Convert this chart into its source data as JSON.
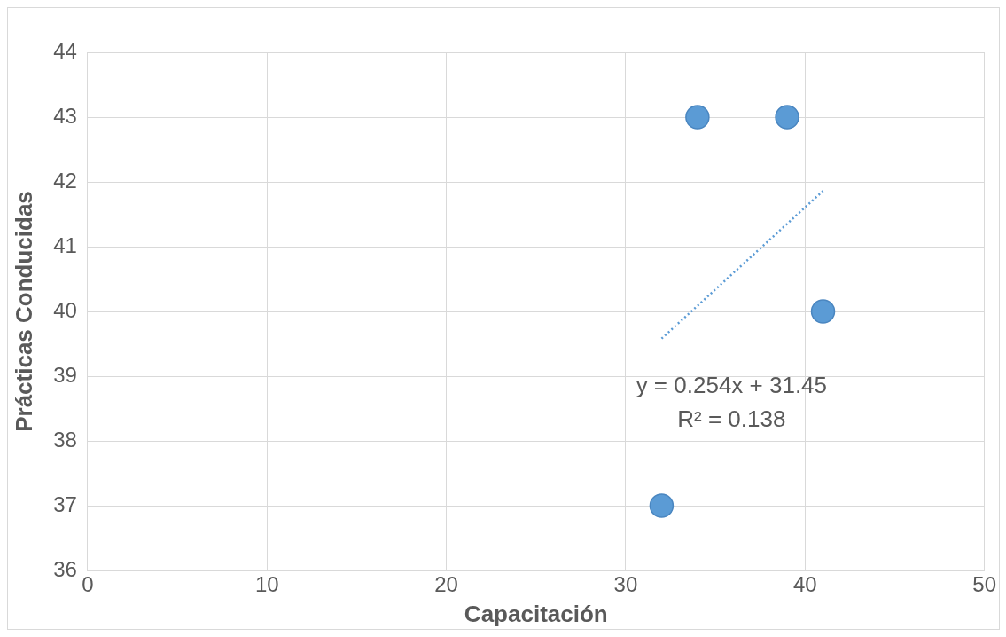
{
  "chart_data": {
    "type": "scatter",
    "xlabel": "Capacitación",
    "ylabel": "Prácticas Conducidas",
    "series": [
      {
        "color": "#5b9bd5",
        "x": [
          34,
          39,
          41,
          32
        ],
        "values": [
          43,
          43,
          40,
          37
        ]
      },
      {
        "type": "line",
        "color": "#5b9bd5",
        "line_style": "dotted",
        "marker": "none",
        "x": [
          32,
          41
        ],
        "values": [
          39.58,
          41.86
        ]
      }
    ],
    "xlim": [
      0,
      50
    ],
    "xticks": [
      0,
      10,
      20,
      30,
      40,
      50
    ],
    "ylim": [
      36,
      44
    ],
    "yticks": [
      36,
      37,
      38,
      39,
      40,
      41,
      42,
      43,
      44
    ],
    "grid": true,
    "marker": "circle",
    "legend": false,
    "annotations": [
      "y = 0.254x + 31.45",
      "R² = 0.138"
    ]
  }
}
